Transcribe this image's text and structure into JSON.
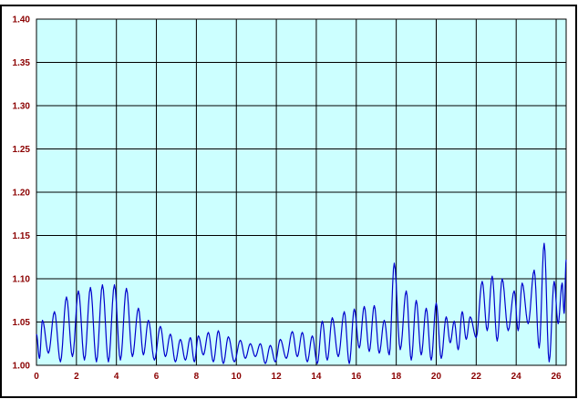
{
  "chart_data": {
    "type": "line",
    "title": "",
    "xlabel": "",
    "ylabel": "",
    "xlim": [
      0,
      26.5
    ],
    "ylim": [
      1.0,
      1.4
    ],
    "x_ticks": [
      0,
      2,
      4,
      6,
      8,
      10,
      12,
      14,
      16,
      18,
      20,
      22,
      24,
      26
    ],
    "x_tick_labels": [
      "0",
      "2",
      "4",
      "6",
      "8",
      "10",
      "12",
      "14",
      "16",
      "18",
      "20",
      "22",
      "24",
      "26"
    ],
    "y_ticks": [
      1.0,
      1.05,
      1.1,
      1.15,
      1.2,
      1.25,
      1.3,
      1.35,
      1.4
    ],
    "y_tick_labels": [
      "1.00",
      "1.05",
      "1.10",
      "1.15",
      "1.20",
      "1.25",
      "1.30",
      "1.35",
      "1.40"
    ],
    "grid": true,
    "legend": "none",
    "colors": {
      "plot_background": "#ccffff",
      "grid": "#000000",
      "line": "#0000cc",
      "tick_label": "#8b0000",
      "outer_background": "#ffffff",
      "frame": "#000000"
    },
    "series": [
      {
        "peaks": [
          [
            0.0,
            1.01,
            1.036
          ],
          [
            0.3,
            1.008,
            1.052
          ],
          [
            0.9,
            1.014,
            1.062
          ],
          [
            1.5,
            1.004,
            1.079
          ],
          [
            2.1,
            1.01,
            1.086
          ],
          [
            2.7,
            1.006,
            1.09
          ],
          [
            3.3,
            1.004,
            1.093
          ],
          [
            3.9,
            1.004,
            1.093
          ],
          [
            4.5,
            1.006,
            1.089
          ],
          [
            5.1,
            1.01,
            1.066
          ],
          [
            5.6,
            1.012,
            1.052
          ],
          [
            6.2,
            1.006,
            1.045
          ],
          [
            6.7,
            1.01,
            1.036
          ],
          [
            7.2,
            1.004,
            1.03
          ],
          [
            7.7,
            1.006,
            1.032
          ],
          [
            8.1,
            1.004,
            1.034
          ],
          [
            8.6,
            1.012,
            1.038
          ],
          [
            9.1,
            1.004,
            1.04
          ],
          [
            9.6,
            1.002,
            1.033
          ],
          [
            10.2,
            1.004,
            1.029
          ],
          [
            10.7,
            1.008,
            1.025
          ],
          [
            11.2,
            1.01,
            1.025
          ],
          [
            11.7,
            1.002,
            1.023
          ],
          [
            12.2,
            1.004,
            1.03
          ],
          [
            12.8,
            1.008,
            1.039
          ],
          [
            13.3,
            1.01,
            1.038
          ],
          [
            13.8,
            1.004,
            1.034
          ],
          [
            14.3,
            1.002,
            1.051
          ],
          [
            14.8,
            1.006,
            1.055
          ],
          [
            15.4,
            1.01,
            1.062
          ],
          [
            15.9,
            1.002,
            1.065
          ],
          [
            16.4,
            1.02,
            1.068
          ],
          [
            16.9,
            1.016,
            1.069
          ],
          [
            17.4,
            1.014,
            1.052
          ],
          [
            17.9,
            1.012,
            1.118
          ],
          [
            18.5,
            1.018,
            1.086
          ],
          [
            19.0,
            1.006,
            1.075
          ],
          [
            19.5,
            1.012,
            1.066
          ],
          [
            20.0,
            1.006,
            1.072
          ],
          [
            20.5,
            1.008,
            1.056
          ],
          [
            20.9,
            1.026,
            1.051
          ],
          [
            21.3,
            1.018,
            1.062
          ],
          [
            21.7,
            1.03,
            1.056
          ],
          [
            22.3,
            1.032,
            1.097
          ],
          [
            22.8,
            1.04,
            1.103
          ],
          [
            23.3,
            1.028,
            1.1
          ],
          [
            23.9,
            1.04,
            1.086
          ],
          [
            24.3,
            1.04,
            1.095
          ],
          [
            24.9,
            1.048,
            1.11
          ],
          [
            25.4,
            1.02,
            1.141
          ],
          [
            25.9,
            1.004,
            1.097
          ],
          [
            26.3,
            1.048,
            1.095
          ],
          [
            26.5,
            1.06,
            1.122
          ]
        ]
      }
    ]
  }
}
